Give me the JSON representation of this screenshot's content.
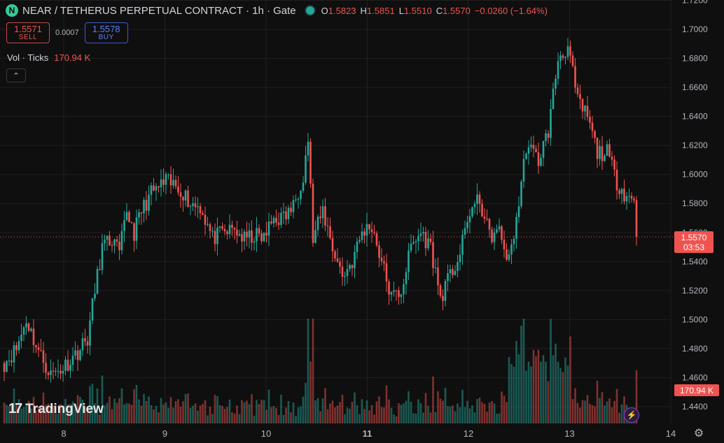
{
  "header": {
    "logo_letter": "N",
    "title": "NEAR / TETHERUS PERPETUAL CONTRACT · 1h · Gate",
    "ohlc": {
      "o_label": "O",
      "o": "1.5823",
      "h_label": "H",
      "h": "1.5851",
      "l_label": "L",
      "l": "1.5510",
      "c_label": "C",
      "c": "1.5570",
      "change": "−0.0260 (−1.64%)"
    }
  },
  "trade": {
    "sell_price": "1.5571",
    "sell_label": "SELL",
    "spread": "0.0007",
    "buy_price": "1.5578",
    "buy_label": "BUY"
  },
  "volume_legend": {
    "label": "Vol · Ticks",
    "value": "170.94 K"
  },
  "branding": {
    "logo_mark": "17",
    "logo_text": "TradingView"
  },
  "icons": {
    "collapse": "chevron-up-icon",
    "settings": "gear-icon",
    "lightning": "lightning-icon"
  },
  "colors": {
    "up": "#26a69a",
    "down": "#ef5350",
    "background": "#0f0f0f",
    "grid": "#1f1f1f"
  },
  "chart_data": {
    "type": "candlestick",
    "interval": "1h",
    "y_axis": {
      "range": [
        1.435,
        1.72
      ],
      "ticks": [
        "1.7200",
        "1.7000",
        "1.6800",
        "1.6600",
        "1.6400",
        "1.6200",
        "1.6000",
        "1.5800",
        "1.5600",
        "1.5400",
        "1.5200",
        "1.5000",
        "1.4800",
        "1.4600",
        "1.4400"
      ]
    },
    "x_axis": {
      "ticks": [
        "8",
        "9",
        "10",
        "11",
        "12",
        "13",
        "14"
      ]
    },
    "last_price": "1.5570",
    "countdown": "03:53",
    "volume_badge": "170.94 K",
    "keyframes": [
      [
        0,
        1.47
      ],
      [
        5,
        1.48
      ],
      [
        9,
        1.5
      ],
      [
        14,
        1.478
      ],
      [
        19,
        1.462
      ],
      [
        24,
        1.467
      ],
      [
        30,
        1.478
      ],
      [
        34,
        1.487
      ],
      [
        37,
        1.52
      ],
      [
        40,
        1.55
      ],
      [
        44,
        1.555
      ],
      [
        47,
        1.545
      ],
      [
        50,
        1.575
      ],
      [
        53,
        1.56
      ],
      [
        56,
        1.575
      ],
      [
        60,
        1.587
      ],
      [
        66,
        1.595
      ],
      [
        72,
        1.59
      ],
      [
        76,
        1.58
      ],
      [
        80,
        1.578
      ],
      [
        85,
        1.556
      ],
      [
        90,
        1.56
      ],
      [
        94,
        1.562
      ],
      [
        98,
        1.555
      ],
      [
        102,
        1.558
      ],
      [
        106,
        1.556
      ],
      [
        110,
        1.57
      ],
      [
        114,
        1.57
      ],
      [
        118,
        1.578
      ],
      [
        122,
        1.6
      ],
      [
        124,
        1.625
      ],
      [
        126,
        1.555
      ],
      [
        130,
        1.575
      ],
      [
        134,
        1.55
      ],
      [
        138,
        1.53
      ],
      [
        142,
        1.54
      ],
      [
        146,
        1.56
      ],
      [
        150,
        1.565
      ],
      [
        154,
        1.54
      ],
      [
        158,
        1.515
      ],
      [
        162,
        1.52
      ],
      [
        166,
        1.55
      ],
      [
        170,
        1.56
      ],
      [
        174,
        1.55
      ],
      [
        178,
        1.515
      ],
      [
        182,
        1.53
      ],
      [
        186,
        1.545
      ],
      [
        190,
        1.575
      ],
      [
        194,
        1.582
      ],
      [
        198,
        1.558
      ],
      [
        202,
        1.56
      ],
      [
        206,
        1.54
      ],
      [
        210,
        1.58
      ],
      [
        213,
        1.62
      ],
      [
        218,
        1.61
      ],
      [
        222,
        1.63
      ],
      [
        226,
        1.68
      ],
      [
        230,
        1.688
      ],
      [
        234,
        1.65
      ],
      [
        238,
        1.64
      ],
      [
        242,
        1.615
      ],
      [
        246,
        1.615
      ],
      [
        250,
        1.595
      ],
      [
        254,
        1.585
      ],
      [
        257,
        1.5823
      ],
      [
        258,
        1.557
      ]
    ]
  }
}
